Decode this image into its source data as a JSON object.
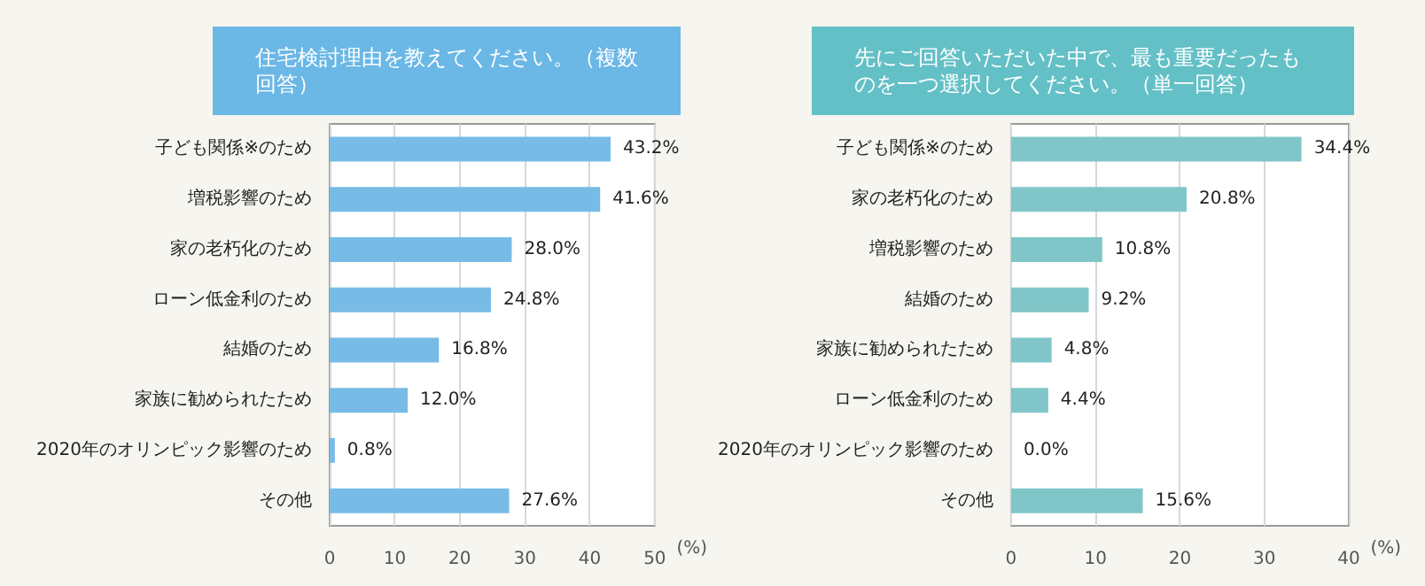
{
  "chart_data": [
    {
      "type": "bar",
      "orientation": "horizontal",
      "title": "住宅検討理由を教えてください。（複数回答）",
      "categories": [
        "子ども関係※のため",
        "増税影響のため",
        "家の老朽化のため",
        "ローン低金利のため",
        "結婚のため",
        "家族に勧められたため",
        "2020年のオリンピック影響のため",
        "その他"
      ],
      "values": [
        43.2,
        41.6,
        28.0,
        24.8,
        16.8,
        12.0,
        0.8,
        27.6
      ],
      "value_labels": [
        "43.2%",
        "41.6%",
        "28.0%",
        "24.8%",
        "16.8%",
        "12.0%",
        "0.8%",
        "27.6%"
      ],
      "color": "#78bbe6",
      "xlabel": "(%)",
      "xlim": [
        0,
        50
      ],
      "xticks": [
        0,
        10,
        20,
        30,
        40,
        50
      ],
      "grid": "x"
    },
    {
      "type": "bar",
      "orientation": "horizontal",
      "title": "先にご回答いただいた中で、最も重要だったものを一つ選択してください。（単一回答）",
      "categories": [
        "子ども関係※のため",
        "家の老朽化のため",
        "増税影響のため",
        "結婚のため",
        "家族に勧められたため",
        "ローン低金利のため",
        "2020年のオリンピック影響のため",
        "その他"
      ],
      "values": [
        34.4,
        20.8,
        10.8,
        9.2,
        4.8,
        4.4,
        0.0,
        15.6
      ],
      "value_labels": [
        "34.4%",
        "20.8%",
        "10.8%",
        "9.2%",
        "4.8%",
        "4.4%",
        "0.0%",
        "15.6%"
      ],
      "color": "#80c6c8",
      "xlabel": "(%)",
      "xlim": [
        0,
        40
      ],
      "xticks": [
        0,
        10,
        20,
        30,
        40
      ],
      "grid": "x"
    }
  ]
}
